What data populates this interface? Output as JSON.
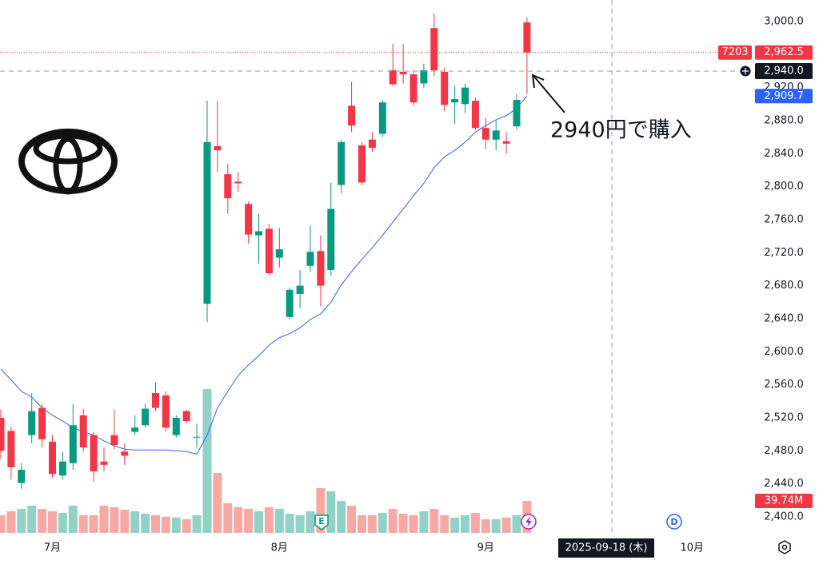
{
  "chart_data": {
    "type": "candlestick",
    "symbol": "7203",
    "categories": [
      null,
      null,
      null,
      null,
      null,
      "7月",
      null,
      null,
      null,
      null,
      null,
      null,
      null,
      null,
      null,
      null,
      null,
      null,
      null,
      null,
      null,
      null,
      null,
      null,
      null,
      null,
      null,
      "8月",
      null,
      null,
      null,
      null,
      null,
      null,
      null,
      null,
      null,
      null,
      null,
      null,
      null,
      null,
      null,
      null,
      null,
      null,
      null,
      "9月",
      null,
      null,
      null,
      null,
      null,
      null,
      null,
      null,
      null,
      null,
      null,
      null,
      null,
      null,
      null,
      null,
      null,
      null,
      null,
      "10月"
    ],
    "open": [
      2520,
      2504,
      2441,
      2499,
      2532,
      2491,
      2450,
      2465,
      2523,
      2499,
      2467,
      2499,
      2479,
      2503,
      2511,
      2550,
      2547,
      2499,
      2528,
      2496,
      2658,
      2849,
      2815,
      2806,
      2779,
      2741,
      2749,
      2714,
      2642,
      2670,
      2704,
      2722,
      2699,
      2802,
      2898,
      2850,
      2857,
      2864,
      2941,
      2939,
      2936,
      2925,
      2992,
      2939,
      2902,
      2900,
      2904,
      2871,
      2857,
      2855,
      2873,
      2999,
      null,
      null,
      null,
      null,
      null,
      null,
      null,
      null,
      null,
      null,
      null,
      null,
      null,
      null,
      null,
      null
    ],
    "high": [
      2530,
      2509,
      2465,
      2550,
      2537,
      2499,
      2479,
      2537,
      2531,
      2503,
      2484,
      2530,
      2489,
      2523,
      2537,
      2563,
      2552,
      2523,
      2530,
      2513,
      2904,
      2904,
      2828,
      2818,
      2782,
      2767,
      2755,
      2750,
      2678,
      2699,
      2753,
      2741,
      2805,
      2857,
      2927,
      2854,
      2866,
      2905,
      2973,
      2973,
      2941,
      2949,
      3010,
      2944,
      2922,
      2925,
      2908,
      2883,
      2881,
      2866,
      2912,
      3005,
      null,
      null,
      null,
      null,
      null,
      null,
      null,
      null,
      null,
      null,
      null,
      null,
      null,
      null,
      null,
      null
    ],
    "low": [
      2470,
      2445,
      2434,
      2489,
      2484,
      2447,
      2445,
      2457,
      2479,
      2442,
      2455,
      2482,
      2463,
      2499,
      2508,
      2528,
      2503,
      2496,
      2513,
      2484,
      2636,
      2818,
      2767,
      2794,
      2731,
      2707,
      2692,
      2702,
      2639,
      2653,
      2697,
      2655,
      2692,
      2792,
      2866,
      2802,
      2842,
      2860,
      2922,
      2925,
      2898,
      2920,
      2934,
      2891,
      2876,
      2889,
      2869,
      2845,
      2844,
      2840,
      2869,
      2912,
      null,
      null,
      null,
      null,
      null,
      null,
      null,
      null,
      null,
      null,
      null,
      null,
      null,
      null,
      null,
      null
    ],
    "close": [
      2480,
      2460,
      2457,
      2528,
      2494,
      2452,
      2467,
      2511,
      2484,
      2455,
      2463,
      2487,
      2474,
      2508,
      2531,
      2532,
      2508,
      2520,
      2516,
      2497,
      2854,
      2844,
      2786,
      2804,
      2742,
      2746,
      2695,
      2724,
      2675,
      2680,
      2721,
      2680,
      2773,
      2854,
      2874,
      2805,
      2847,
      2902,
      2924,
      2936,
      2902,
      2941,
      2941,
      2899,
      2906,
      2920,
      2871,
      2857,
      2868,
      2852,
      2905,
      2962.5,
      null,
      null,
      null,
      null,
      null,
      null,
      null,
      null,
      null,
      null,
      null,
      null,
      null,
      null,
      null,
      null
    ],
    "volume": [
      21.9,
      26.8,
      29.8,
      33.8,
      29.8,
      26.8,
      24.8,
      33.8,
      21.9,
      21.9,
      33.8,
      31.8,
      28.8,
      26.8,
      23.8,
      21.9,
      19.9,
      18.9,
      16.9,
      21.9,
      178.8,
      74.5,
      36.8,
      31.8,
      29.8,
      26.8,
      31.8,
      29.8,
      23.8,
      21.9,
      26.8,
      55.6,
      51.7,
      39.7,
      33.8,
      21.9,
      21.9,
      24.8,
      29.8,
      23.8,
      21.9,
      26.8,
      29.8,
      21.9,
      18.9,
      21.9,
      24.8,
      16.9,
      16.9,
      18.9,
      21.9,
      39.74,
      null,
      null,
      null,
      null,
      null,
      null,
      null,
      null,
      null,
      null,
      null,
      null,
      null,
      null,
      null,
      null
    ],
    "ma": [
      2579,
      2566,
      2552,
      2545,
      2532,
      2523,
      2516,
      2508,
      2503,
      2499,
      2492,
      2486,
      2482,
      2481,
      2481,
      2481,
      2481,
      2480,
      2479,
      2476,
      2499,
      2532,
      2552,
      2571,
      2584,
      2595,
      2608,
      2617,
      2622,
      2629,
      2639,
      2646,
      2660,
      2681,
      2697,
      2712,
      2726,
      2741,
      2757,
      2773,
      2789,
      2804,
      2823,
      2836,
      2844,
      2854,
      2866,
      2874,
      2881,
      2886,
      2895,
      2909.7,
      null,
      null,
      null,
      null,
      null,
      null,
      null,
      null,
      null,
      null,
      null,
      null,
      null,
      null,
      null,
      null
    ],
    "up_color": "#089981",
    "down_color": "#f23645",
    "volume_up_color": "#92d2c6",
    "volume_down_color": "#f7a8a5",
    "ma_color": "#2962ff",
    "ylim": [
      2380.6,
      3026.1
    ],
    "y2lim": [
      0,
      662.7
    ],
    "yticks": [
      {
        "value": 2400,
        "label": "2,400.0"
      },
      {
        "value": 2440,
        "label": "2,440.0"
      },
      {
        "value": 2480,
        "label": "2,480.0"
      },
      {
        "value": 2520,
        "label": "2,520.0"
      },
      {
        "value": 2560,
        "label": "2,560.0"
      },
      {
        "value": 2600,
        "label": "2,600.0"
      },
      {
        "value": 2640,
        "label": "2,640.0"
      },
      {
        "value": 2680,
        "label": "2,680.0"
      },
      {
        "value": 2720,
        "label": "2,720.0"
      },
      {
        "value": 2760,
        "label": "2,760.0"
      },
      {
        "value": 2800,
        "label": "2,800.0"
      },
      {
        "value": 2840,
        "label": "2,840.0"
      },
      {
        "value": 2880,
        "label": "2,880.0"
      },
      {
        "value": 2920,
        "label": "2,920.0"
      },
      {
        "value": 3000,
        "label": "3,000.0"
      }
    ],
    "last_price": {
      "value": 2962.5,
      "label": "2,962.5"
    },
    "ma_last": {
      "value": 2909.7,
      "label": "2,909.7"
    },
    "volume_last": {
      "value": 39.74,
      "label": "39.74M"
    },
    "crosshair": {
      "price": {
        "value": 2940,
        "label": "2,940.0"
      },
      "date": "2025-09-18 (木)"
    },
    "events": [
      "E",
      "D"
    ],
    "annotation": "2940円で購入"
  }
}
